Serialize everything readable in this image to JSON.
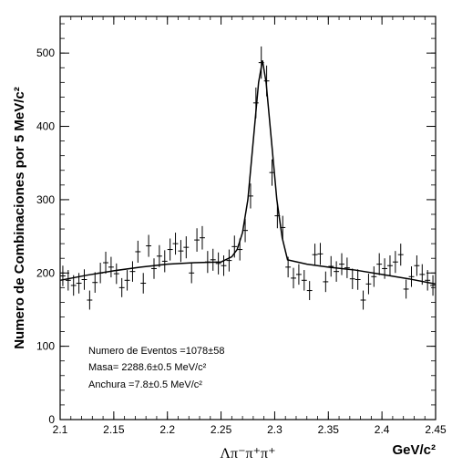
{
  "chart_data": {
    "type": "scatter",
    "title": "",
    "ylabel": "Numero de Combinaciones por 5 MeV/c²",
    "xlabel_symbol": "Λπ⁻π⁺π⁺",
    "xlabel_unit": "GeV/c²",
    "xlim": [
      2.1,
      2.45
    ],
    "ylim": [
      0,
      550
    ],
    "x_ticks": [
      2.1,
      2.15,
      2.2,
      2.25,
      2.3,
      2.35,
      2.4,
      2.45
    ],
    "x_tick_labels": [
      "2.1",
      "2.15",
      "2.2",
      "2.25",
      "2.3",
      "2.35",
      "2.4",
      "2.45"
    ],
    "y_ticks": [
      0,
      100,
      200,
      300,
      400,
      500
    ],
    "y_tick_labels": [
      "0",
      "100",
      "200",
      "300",
      "400",
      "500"
    ],
    "grid": false,
    "legend": "none",
    "annotations": [
      "Numero de Eventos =1078±58",
      "Masa= 2288.6±0.5 MeV/c²",
      "Anchura =7.8±0.5 MeV/c²"
    ],
    "fit": {
      "mass": 2.2886,
      "width": 0.0078,
      "curve": [
        [
          2.1,
          190
        ],
        [
          2.125,
          197
        ],
        [
          2.15,
          203
        ],
        [
          2.175,
          208
        ],
        [
          2.2,
          212
        ],
        [
          2.225,
          214
        ],
        [
          2.25,
          215
        ],
        [
          2.26,
          222
        ],
        [
          2.265,
          232
        ],
        [
          2.27,
          255
        ],
        [
          2.275,
          300
        ],
        [
          2.28,
          380
        ],
        [
          2.285,
          460
        ],
        [
          2.2886,
          490
        ],
        [
          2.292,
          460
        ],
        [
          2.297,
          380
        ],
        [
          2.302,
          300
        ],
        [
          2.307,
          248
        ],
        [
          2.312,
          218
        ],
        [
          2.33,
          212
        ],
        [
          2.35,
          208
        ],
        [
          2.375,
          204
        ],
        [
          2.4,
          198
        ],
        [
          2.425,
          192
        ],
        [
          2.45,
          185
        ]
      ]
    },
    "series": [
      {
        "points": [
          [
            2.1025,
            196,
            14
          ],
          [
            2.1075,
            190,
            14
          ],
          [
            2.1125,
            183,
            14
          ],
          [
            2.1175,
            186,
            14
          ],
          [
            2.1225,
            191,
            14
          ],
          [
            2.1275,
            163,
            13
          ],
          [
            2.1325,
            187,
            14
          ],
          [
            2.1375,
            200,
            14
          ],
          [
            2.1425,
            214,
            15
          ],
          [
            2.1475,
            208,
            14
          ],
          [
            2.1525,
            199,
            14
          ],
          [
            2.1575,
            180,
            13
          ],
          [
            2.1625,
            190,
            14
          ],
          [
            2.1675,
            202,
            14
          ],
          [
            2.1725,
            229,
            15
          ],
          [
            2.1775,
            186,
            14
          ],
          [
            2.1825,
            237,
            15
          ],
          [
            2.1875,
            206,
            14
          ],
          [
            2.1925,
            223,
            15
          ],
          [
            2.1975,
            216,
            15
          ],
          [
            2.2025,
            232,
            15
          ],
          [
            2.2075,
            240,
            15
          ],
          [
            2.2125,
            230,
            15
          ],
          [
            2.2175,
            235,
            15
          ],
          [
            2.2225,
            200,
            14
          ],
          [
            2.2275,
            245,
            16
          ],
          [
            2.2325,
            248,
            16
          ],
          [
            2.2375,
            215,
            15
          ],
          [
            2.2425,
            218,
            15
          ],
          [
            2.2475,
            213,
            15
          ],
          [
            2.2525,
            210,
            14
          ],
          [
            2.2575,
            217,
            15
          ],
          [
            2.2625,
            236,
            15
          ],
          [
            2.2675,
            232,
            15
          ],
          [
            2.2725,
            258,
            16
          ],
          [
            2.2775,
            305,
            17
          ],
          [
            2.2825,
            432,
            21
          ],
          [
            2.2875,
            487,
            22
          ],
          [
            2.2925,
            462,
            21
          ],
          [
            2.2975,
            337,
            18
          ],
          [
            2.3025,
            278,
            17
          ],
          [
            2.3075,
            262,
            16
          ],
          [
            2.3125,
            208,
            14
          ],
          [
            2.3175,
            193,
            14
          ],
          [
            2.3225,
            198,
            14
          ],
          [
            2.3275,
            190,
            14
          ],
          [
            2.3325,
            176,
            13
          ],
          [
            2.3375,
            225,
            15
          ],
          [
            2.3425,
            226,
            15
          ],
          [
            2.3475,
            188,
            14
          ],
          [
            2.3525,
            209,
            14
          ],
          [
            2.3575,
            202,
            14
          ],
          [
            2.3625,
            212,
            15
          ],
          [
            2.3675,
            207,
            14
          ],
          [
            2.3725,
            192,
            14
          ],
          [
            2.3775,
            191,
            14
          ],
          [
            2.3825,
            163,
            13
          ],
          [
            2.3875,
            185,
            14
          ],
          [
            2.3925,
            195,
            14
          ],
          [
            2.3975,
            212,
            15
          ],
          [
            2.4025,
            206,
            14
          ],
          [
            2.4075,
            210,
            14
          ],
          [
            2.4125,
            215,
            15
          ],
          [
            2.4175,
            225,
            15
          ],
          [
            2.4225,
            178,
            13
          ],
          [
            2.4275,
            195,
            14
          ],
          [
            2.4325,
            210,
            14
          ],
          [
            2.4375,
            198,
            14
          ],
          [
            2.4425,
            190,
            14
          ],
          [
            2.4475,
            183,
            14
          ]
        ]
      }
    ]
  }
}
